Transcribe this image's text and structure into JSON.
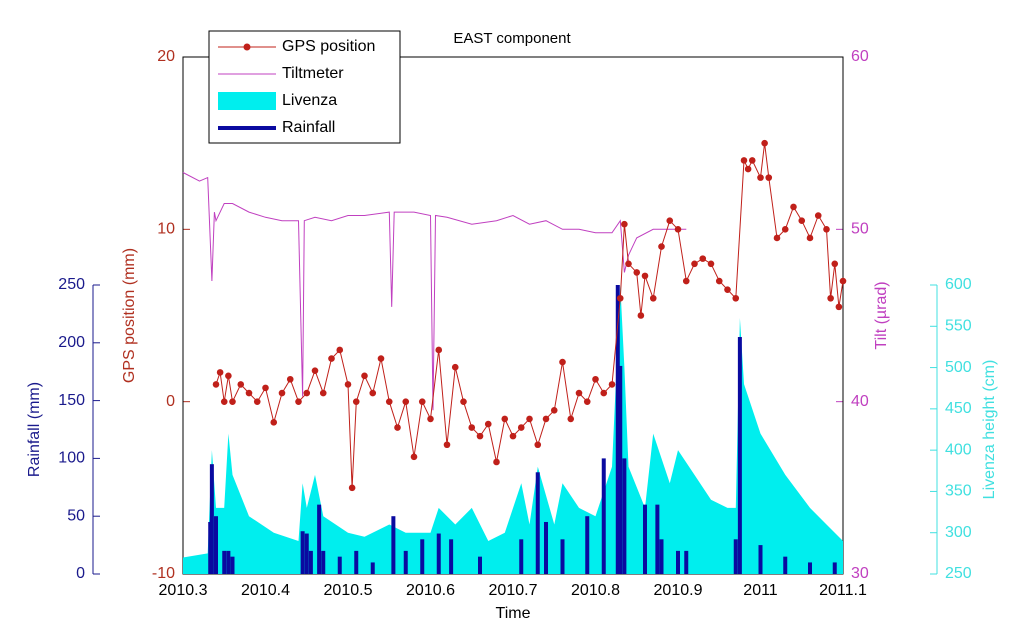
{
  "chart_data": {
    "type": "combo",
    "title": "EAST component",
    "x_label": "Time",
    "xlim": [
      2010.3,
      2011.1
    ],
    "xticks": [
      2010.3,
      2010.4,
      2010.5,
      2010.6,
      2010.7,
      2010.8,
      2010.9,
      2011,
      2011.1
    ],
    "axes": [
      {
        "label": "GPS position (mm)",
        "lim": [
          -10,
          20
        ],
        "ticks": [
          -10,
          0,
          10,
          20
        ],
        "color": "#b03020",
        "side": "left"
      },
      {
        "label": "Rainfall (mm)",
        "lim": [
          0,
          250
        ],
        "ticks": [
          0,
          50,
          100,
          150,
          200,
          250
        ],
        "color": "#1a1a8c",
        "side": "left"
      },
      {
        "label": "Tilt (µrad)",
        "lim": [
          30,
          60
        ],
        "ticks": [
          30,
          40,
          50,
          60
        ],
        "color": "#c040c0",
        "side": "right"
      },
      {
        "label": "Livenza height (cm)",
        "lim": [
          250,
          600
        ],
        "ticks": [
          250,
          300,
          350,
          400,
          450,
          500,
          550,
          600
        ],
        "color": "#40e0e0",
        "side": "right"
      }
    ],
    "series": [
      {
        "name": "GPS position",
        "type": "line-marker",
        "axis": 0,
        "color": "#c0201a",
        "x": [
          2010.34,
          2010.345,
          2010.35,
          2010.355,
          2010.36,
          2010.37,
          2010.38,
          2010.39,
          2010.4,
          2010.41,
          2010.42,
          2010.43,
          2010.44,
          2010.45,
          2010.46,
          2010.47,
          2010.48,
          2010.49,
          2010.5,
          2010.505,
          2010.51,
          2010.52,
          2010.53,
          2010.54,
          2010.55,
          2010.56,
          2010.57,
          2010.58,
          2010.59,
          2010.6,
          2010.61,
          2010.62,
          2010.63,
          2010.64,
          2010.65,
          2010.66,
          2010.67,
          2010.68,
          2010.69,
          2010.7,
          2010.71,
          2010.72,
          2010.73,
          2010.74,
          2010.75,
          2010.76,
          2010.77,
          2010.78,
          2010.79,
          2010.8,
          2010.81,
          2010.82,
          2010.83,
          2010.835,
          2010.84,
          2010.85,
          2010.855,
          2010.86,
          2010.87,
          2010.88,
          2010.89,
          2010.9,
          2010.91,
          2010.92,
          2010.93,
          2010.94,
          2010.95,
          2010.96,
          2010.97,
          2010.98,
          2010.985,
          2010.99,
          2011,
          2011.005,
          2011.01,
          2011.02,
          2011.03,
          2011.04,
          2011.05,
          2011.06,
          2011.07,
          2011.08,
          2011.085,
          2011.09,
          2011.095,
          2011.1
        ],
        "values": [
          1,
          1.7,
          0,
          1.5,
          0,
          1,
          0.5,
          0,
          0.8,
          -1.2,
          0.5,
          1.3,
          0,
          0.5,
          1.8,
          0.5,
          2.5,
          3,
          1,
          -5,
          0,
          1.5,
          0.5,
          2.5,
          0,
          -1.5,
          0,
          -3.2,
          0,
          -1,
          3,
          -2.5,
          2,
          0,
          -1.5,
          -2,
          -1.3,
          -3.5,
          -1,
          -2,
          -1.5,
          -1,
          -2.5,
          -1,
          -0.5,
          2.3,
          -1,
          0.5,
          0,
          1.3,
          0.5,
          1,
          6,
          10.3,
          8,
          7.5,
          5,
          7.3,
          6,
          9,
          10.5,
          10,
          7,
          8,
          8.3,
          8,
          7,
          6.5,
          6,
          14,
          13.5,
          14,
          13,
          15,
          13,
          9.5,
          10,
          11.3,
          10.5,
          9.5,
          10.8,
          10,
          6,
          8,
          5.5,
          7
        ]
      },
      {
        "name": "Tiltmeter",
        "type": "line",
        "axis": 2,
        "color": "#c040c0",
        "x": [
          2010.3,
          2010.32,
          2010.33,
          2010.335,
          2010.338,
          2010.34,
          2010.35,
          2010.36,
          2010.38,
          2010.4,
          2010.42,
          2010.44,
          2010.445,
          2010.447,
          2010.46,
          2010.48,
          2010.5,
          2010.52,
          2010.55,
          2010.553,
          2010.556,
          2010.58,
          2010.6,
          2010.603,
          2010.606,
          2010.62,
          2010.65,
          2010.68,
          2010.7,
          2010.72,
          2010.74,
          2010.76,
          2010.78,
          2010.8,
          2010.82,
          2010.83,
          2010.835,
          2010.84,
          2010.85,
          2010.87,
          2010.89,
          2010.91
        ],
        "values": [
          53.3,
          52.8,
          53,
          47,
          51,
          50.5,
          51.5,
          51.5,
          51,
          50.7,
          50.5,
          50.5,
          40.3,
          50.5,
          50.7,
          50.5,
          50.8,
          50.8,
          51,
          45.5,
          51,
          51,
          50.8,
          39.5,
          50.8,
          50.7,
          50.3,
          50.5,
          50.8,
          50.3,
          50.5,
          50,
          50,
          49.8,
          49.8,
          50.5,
          47.5,
          48.5,
          49.5,
          50,
          50,
          50
        ]
      },
      {
        "name": "Livenza",
        "type": "area",
        "axis": 3,
        "color": "#00eeee",
        "x": [
          2010.3,
          2010.33,
          2010.335,
          2010.34,
          2010.35,
          2010.355,
          2010.36,
          2010.38,
          2010.41,
          2010.44,
          2010.445,
          2010.45,
          2010.46,
          2010.47,
          2010.5,
          2010.52,
          2010.55,
          2010.57,
          2010.6,
          2010.61,
          2010.63,
          2010.65,
          2010.67,
          2010.69,
          2010.71,
          2010.72,
          2010.73,
          2010.75,
          2010.76,
          2010.78,
          2010.8,
          2010.82,
          2010.83,
          2010.835,
          2010.84,
          2010.86,
          2010.87,
          2010.89,
          2010.9,
          2010.92,
          2010.94,
          2010.96,
          2010.97,
          2010.975,
          2010.98,
          2011,
          2011.03,
          2011.06,
          2011.08,
          2011.1
        ],
        "values": [
          270,
          275,
          400,
          330,
          330,
          420,
          370,
          320,
          300,
          290,
          360,
          330,
          370,
          320,
          300,
          295,
          310,
          300,
          300,
          330,
          310,
          330,
          290,
          300,
          360,
          310,
          380,
          310,
          360,
          330,
          320,
          380,
          600,
          500,
          380,
          330,
          420,
          360,
          400,
          370,
          340,
          330,
          330,
          560,
          480,
          420,
          370,
          330,
          310,
          290
        ]
      },
      {
        "name": "Rainfall",
        "type": "bar",
        "axis": 1,
        "color": "#0a0aa0",
        "x": [
          2010.333,
          2010.335,
          2010.34,
          2010.35,
          2010.355,
          2010.36,
          2010.445,
          2010.45,
          2010.455,
          2010.465,
          2010.47,
          2010.49,
          2010.51,
          2010.53,
          2010.555,
          2010.57,
          2010.59,
          2010.61,
          2010.625,
          2010.66,
          2010.71,
          2010.73,
          2010.74,
          2010.76,
          2010.79,
          2010.81,
          2010.827,
          2010.83,
          2010.835,
          2010.86,
          2010.875,
          2010.88,
          2010.9,
          2010.91,
          2010.97,
          2010.975,
          2011,
          2011.03,
          2011.06,
          2011.09
        ],
        "values": [
          45,
          95,
          50,
          20,
          20,
          15,
          37,
          35,
          20,
          60,
          20,
          15,
          20,
          10,
          50,
          20,
          30,
          35,
          30,
          15,
          30,
          88,
          45,
          30,
          50,
          100,
          250,
          180,
          100,
          60,
          60,
          30,
          20,
          20,
          30,
          205,
          25,
          15,
          10,
          10
        ]
      }
    ]
  }
}
